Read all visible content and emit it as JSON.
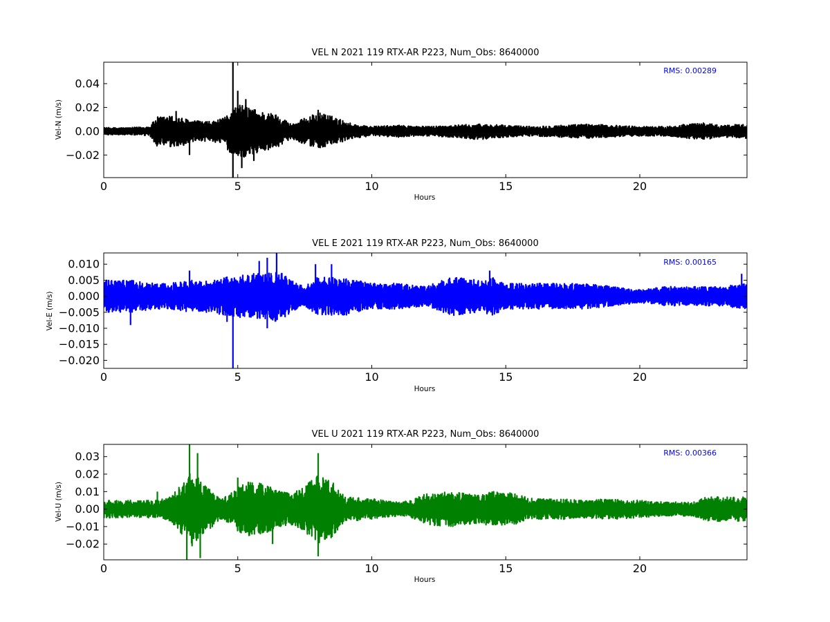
{
  "chart_data": [
    {
      "type": "line",
      "title": "VEL N 2021 119 RTX-AR  P223, Num_Obs: 8640000",
      "xlabel": "Hours",
      "ylabel": "Vel-N (m/s)",
      "xlim": [
        0,
        24
      ],
      "ylim": [
        -0.039,
        0.058
      ],
      "xticks": [
        0,
        5,
        10,
        15,
        20
      ],
      "xtick_labels": [
        "0",
        "5",
        "10",
        "15",
        "20"
      ],
      "yticks": [
        -0.02,
        0.0,
        0.02,
        0.04
      ],
      "ytick_labels": [
        "−0.02",
        "0.00",
        "0.02",
        "0.04"
      ],
      "annotation": "RMS:  0.00289",
      "color": "#000000",
      "annotation_color": "#0000ff",
      "grid": false,
      "envelope": {
        "x": [
          0,
          1,
          1.7,
          2,
          2.6,
          3.3,
          4,
          4.5,
          4.8,
          5.2,
          5.8,
          6.5,
          7,
          7.7,
          8.1,
          8.7,
          9.3,
          10,
          11,
          12,
          13,
          14,
          15,
          16,
          17,
          18,
          19,
          20,
          21,
          21.7,
          22.5,
          23,
          24
        ],
        "upper": [
          0.003,
          0.003,
          0.004,
          0.012,
          0.013,
          0.009,
          0.008,
          0.011,
          0.02,
          0.023,
          0.017,
          0.014,
          0.006,
          0.013,
          0.016,
          0.011,
          0.006,
          0.004,
          0.005,
          0.004,
          0.005,
          0.006,
          0.005,
          0.004,
          0.005,
          0.006,
          0.005,
          0.004,
          0.004,
          0.006,
          0.007,
          0.005,
          0.006
        ],
        "lower": [
          -0.003,
          -0.003,
          -0.004,
          -0.013,
          -0.014,
          -0.01,
          -0.008,
          -0.012,
          -0.021,
          -0.022,
          -0.018,
          -0.013,
          -0.006,
          -0.013,
          -0.014,
          -0.011,
          -0.006,
          -0.004,
          -0.005,
          -0.004,
          -0.005,
          -0.007,
          -0.005,
          -0.004,
          -0.005,
          -0.006,
          -0.005,
          -0.004,
          -0.004,
          -0.006,
          -0.007,
          -0.005,
          -0.006
        ]
      },
      "spikes": [
        {
          "x": 4.82,
          "y": 0.058
        },
        {
          "x": 4.82,
          "y": -0.039
        },
        {
          "x": 5.0,
          "y": 0.034
        },
        {
          "x": 5.15,
          "y": -0.031
        },
        {
          "x": 5.3,
          "y": 0.027
        },
        {
          "x": 2.7,
          "y": 0.017
        },
        {
          "x": 8.0,
          "y": 0.018
        },
        {
          "x": 5.6,
          "y": -0.025
        },
        {
          "x": 3.2,
          "y": -0.02
        }
      ]
    },
    {
      "type": "line",
      "title": "VEL E 2021 119 RTX-AR  P223, Num_Obs: 8640000",
      "xlabel": "Hours",
      "ylabel": "Vel-E (m/s)",
      "xlim": [
        0,
        24
      ],
      "ylim": [
        -0.0225,
        0.0135
      ],
      "xticks": [
        0,
        5,
        10,
        15,
        20
      ],
      "xtick_labels": [
        "0",
        "5",
        "10",
        "15",
        "20"
      ],
      "yticks": [
        -0.02,
        -0.015,
        -0.01,
        -0.005,
        0.0,
        0.005,
        0.01
      ],
      "ytick_labels": [
        "−0.020",
        "−0.015",
        "−0.010",
        "−0.005",
        "0.000",
        "0.005",
        "0.010"
      ],
      "annotation": "RMS:  0.00165",
      "color": "#0000ff",
      "annotation_color": "#0000ff",
      "grid": false,
      "envelope": {
        "x": [
          0,
          1,
          2,
          2.5,
          3,
          4,
          4.5,
          5.5,
          6,
          6.5,
          7.2,
          7.5,
          8,
          9,
          10,
          11,
          12,
          13,
          14,
          14.5,
          15,
          16,
          17,
          18,
          19,
          20,
          21,
          22,
          23,
          24
        ],
        "upper": [
          0.005,
          0.005,
          0.004,
          0.004,
          0.005,
          0.005,
          0.006,
          0.007,
          0.007,
          0.008,
          0.004,
          0.003,
          0.006,
          0.006,
          0.004,
          0.004,
          0.003,
          0.006,
          0.005,
          0.006,
          0.004,
          0.004,
          0.004,
          0.004,
          0.003,
          0.002,
          0.003,
          0.003,
          0.003,
          0.004
        ],
        "lower": [
          -0.005,
          -0.005,
          -0.004,
          -0.004,
          -0.005,
          -0.005,
          -0.006,
          -0.007,
          -0.007,
          -0.008,
          -0.004,
          -0.003,
          -0.006,
          -0.006,
          -0.004,
          -0.004,
          -0.003,
          -0.006,
          -0.005,
          -0.006,
          -0.004,
          -0.004,
          -0.004,
          -0.004,
          -0.003,
          -0.002,
          -0.003,
          -0.003,
          -0.003,
          -0.004
        ]
      },
      "spikes": [
        {
          "x": 4.82,
          "y": -0.0225
        },
        {
          "x": 6.45,
          "y": 0.0135
        },
        {
          "x": 6.1,
          "y": 0.012
        },
        {
          "x": 5.8,
          "y": 0.011
        },
        {
          "x": 8.5,
          "y": 0.01
        },
        {
          "x": 7.9,
          "y": 0.01
        },
        {
          "x": 1.0,
          "y": -0.009
        },
        {
          "x": 3.2,
          "y": 0.008
        },
        {
          "x": 14.4,
          "y": 0.008
        },
        {
          "x": 23.8,
          "y": 0.007
        },
        {
          "x": 6.1,
          "y": -0.01
        },
        {
          "x": 4.6,
          "y": -0.008
        }
      ]
    },
    {
      "type": "line",
      "title": "VEL U 2021 119 RTX-AR  P223, Num_Obs: 8640000",
      "xlabel": "Hours",
      "ylabel": "Vel-U (m/s)",
      "xlim": [
        0,
        24
      ],
      "ylim": [
        -0.029,
        0.037
      ],
      "xticks": [
        0,
        5,
        10,
        15,
        20
      ],
      "xtick_labels": [
        "0",
        "5",
        "10",
        "15",
        "20"
      ],
      "yticks": [
        -0.02,
        -0.01,
        0.0,
        0.01,
        0.02,
        0.03
      ],
      "ytick_labels": [
        "−0.02",
        "−0.01",
        "0.00",
        "0.01",
        "0.02",
        "0.03"
      ],
      "annotation": "RMS:  0.00366",
      "color": "#008000",
      "annotation_color": "#0000ff",
      "grid": false,
      "envelope": {
        "x": [
          0,
          1,
          2,
          2.5,
          3,
          3.3,
          3.8,
          4.4,
          4.8,
          5.3,
          5.8,
          6.5,
          7,
          7.5,
          8,
          8.4,
          9,
          10,
          11,
          11.5,
          12,
          13,
          14,
          14.5,
          15,
          16,
          17,
          18,
          19,
          20,
          21,
          22,
          22.5,
          23,
          24
        ],
        "upper": [
          0.005,
          0.005,
          0.005,
          0.007,
          0.016,
          0.022,
          0.013,
          0.006,
          0.01,
          0.016,
          0.015,
          0.011,
          0.009,
          0.013,
          0.02,
          0.018,
          0.007,
          0.006,
          0.004,
          0.005,
          0.009,
          0.01,
          0.008,
          0.01,
          0.01,
          0.006,
          0.006,
          0.005,
          0.006,
          0.005,
          0.004,
          0.004,
          0.007,
          0.007,
          0.007
        ],
        "lower": [
          -0.005,
          -0.005,
          -0.005,
          -0.007,
          -0.016,
          -0.022,
          -0.013,
          -0.006,
          -0.01,
          -0.016,
          -0.015,
          -0.011,
          -0.009,
          -0.013,
          -0.02,
          -0.018,
          -0.007,
          -0.006,
          -0.004,
          -0.005,
          -0.009,
          -0.01,
          -0.008,
          -0.01,
          -0.01,
          -0.006,
          -0.006,
          -0.005,
          -0.006,
          -0.005,
          -0.004,
          -0.004,
          -0.007,
          -0.007,
          -0.007
        ]
      },
      "spikes": [
        {
          "x": 3.2,
          "y": 0.037
        },
        {
          "x": 3.1,
          "y": -0.029
        },
        {
          "x": 3.5,
          "y": 0.032
        },
        {
          "x": 8.0,
          "y": 0.032
        },
        {
          "x": 8.0,
          "y": -0.027
        },
        {
          "x": 3.6,
          "y": -0.028
        },
        {
          "x": 5.0,
          "y": 0.018
        },
        {
          "x": 6.3,
          "y": -0.02
        },
        {
          "x": 2.0,
          "y": 0.01
        }
      ]
    }
  ]
}
